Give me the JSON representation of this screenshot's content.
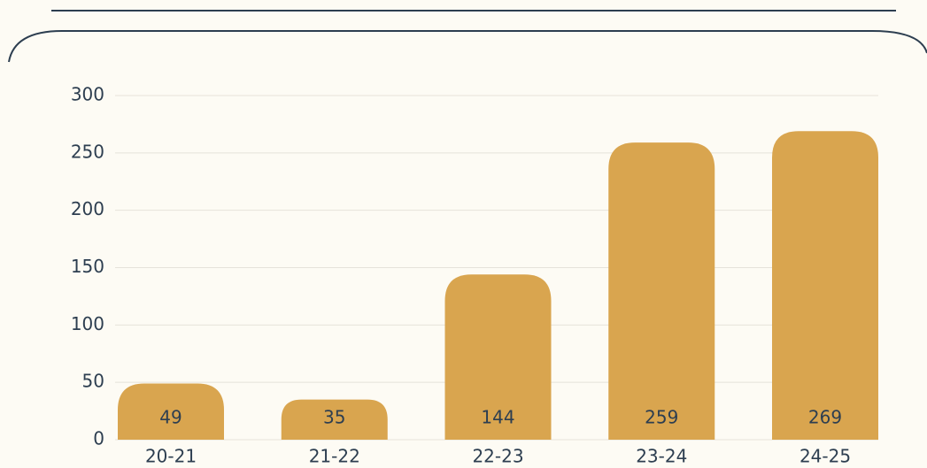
{
  "chart_data": {
    "type": "bar",
    "categories": [
      "20-21",
      "21-22",
      "22-23",
      "23-24",
      "24-25"
    ],
    "values": [
      49,
      35,
      144,
      259,
      269
    ],
    "color": "#d9a54f",
    "ylim": [
      0,
      300
    ],
    "yticks": [
      0,
      50,
      100,
      150,
      200,
      250,
      300
    ],
    "grid": true
  }
}
